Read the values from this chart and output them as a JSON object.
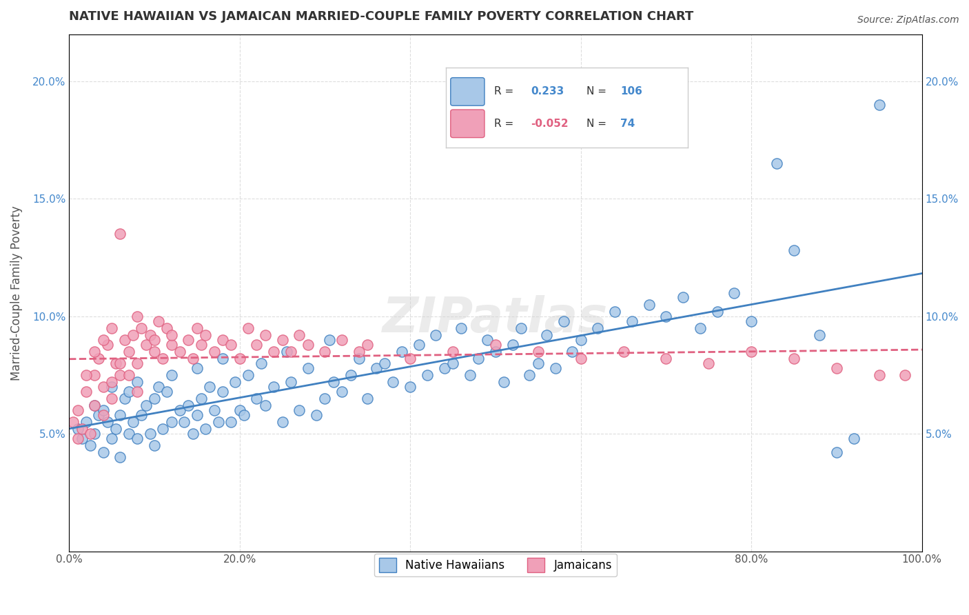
{
  "title": "NATIVE HAWAIIAN VS JAMAICAN MARRIED-COUPLE FAMILY POVERTY CORRELATION CHART",
  "source": "Source: ZipAtlas.com",
  "xlabel": "",
  "ylabel": "Married-Couple Family Poverty",
  "xlim": [
    0,
    100
  ],
  "ylim": [
    0,
    22
  ],
  "xticks": [
    0,
    20,
    40,
    60,
    80,
    100
  ],
  "xticklabels": [
    "0.0%",
    "20.0%",
    "40.0%",
    "60.0%",
    "80.0%",
    "100.0%"
  ],
  "yticks": [
    0,
    5,
    10,
    15,
    20
  ],
  "yticklabels": [
    "",
    "5.0%",
    "10.0%",
    "15.0%",
    "20.0%"
  ],
  "legend_r1": "R =  0.233",
  "legend_n1": "N = 106",
  "legend_r2": "R = -0.052",
  "legend_n2": "N =  74",
  "blue_color": "#a8c8e8",
  "pink_color": "#f0a0b8",
  "blue_line_color": "#4080c0",
  "pink_line_color": "#e06080",
  "watermark": "ZIPatlas",
  "native_hawaiian_data": [
    [
      1,
      5.2
    ],
    [
      1.5,
      4.8
    ],
    [
      2,
      5.5
    ],
    [
      2.5,
      4.5
    ],
    [
      3,
      6.2
    ],
    [
      3,
      5.0
    ],
    [
      3.5,
      5.8
    ],
    [
      4,
      4.2
    ],
    [
      4,
      6.0
    ],
    [
      4.5,
      5.5
    ],
    [
      5,
      4.8
    ],
    [
      5,
      7.0
    ],
    [
      5.5,
      5.2
    ],
    [
      6,
      5.8
    ],
    [
      6,
      4.0
    ],
    [
      6.5,
      6.5
    ],
    [
      7,
      5.0
    ],
    [
      7,
      6.8
    ],
    [
      7.5,
      5.5
    ],
    [
      8,
      4.8
    ],
    [
      8,
      7.2
    ],
    [
      8.5,
      5.8
    ],
    [
      9,
      6.2
    ],
    [
      9.5,
      5.0
    ],
    [
      10,
      4.5
    ],
    [
      10,
      6.5
    ],
    [
      10.5,
      7.0
    ],
    [
      11,
      5.2
    ],
    [
      11.5,
      6.8
    ],
    [
      12,
      5.5
    ],
    [
      12,
      7.5
    ],
    [
      13,
      6.0
    ],
    [
      13.5,
      5.5
    ],
    [
      14,
      6.2
    ],
    [
      14.5,
      5.0
    ],
    [
      15,
      7.8
    ],
    [
      15,
      5.8
    ],
    [
      15.5,
      6.5
    ],
    [
      16,
      5.2
    ],
    [
      16.5,
      7.0
    ],
    [
      17,
      6.0
    ],
    [
      17.5,
      5.5
    ],
    [
      18,
      8.2
    ],
    [
      18,
      6.8
    ],
    [
      19,
      5.5
    ],
    [
      19.5,
      7.2
    ],
    [
      20,
      6.0
    ],
    [
      20.5,
      5.8
    ],
    [
      21,
      7.5
    ],
    [
      22,
      6.5
    ],
    [
      22.5,
      8.0
    ],
    [
      23,
      6.2
    ],
    [
      24,
      7.0
    ],
    [
      25,
      5.5
    ],
    [
      25.5,
      8.5
    ],
    [
      26,
      7.2
    ],
    [
      27,
      6.0
    ],
    [
      28,
      7.8
    ],
    [
      29,
      5.8
    ],
    [
      30,
      6.5
    ],
    [
      30.5,
      9.0
    ],
    [
      31,
      7.2
    ],
    [
      32,
      6.8
    ],
    [
      33,
      7.5
    ],
    [
      34,
      8.2
    ],
    [
      35,
      6.5
    ],
    [
      36,
      7.8
    ],
    [
      37,
      8.0
    ],
    [
      38,
      7.2
    ],
    [
      39,
      8.5
    ],
    [
      40,
      7.0
    ],
    [
      41,
      8.8
    ],
    [
      42,
      7.5
    ],
    [
      43,
      9.2
    ],
    [
      44,
      7.8
    ],
    [
      45,
      8.0
    ],
    [
      46,
      9.5
    ],
    [
      47,
      7.5
    ],
    [
      48,
      8.2
    ],
    [
      49,
      9.0
    ],
    [
      50,
      8.5
    ],
    [
      51,
      7.2
    ],
    [
      52,
      8.8
    ],
    [
      53,
      9.5
    ],
    [
      54,
      7.5
    ],
    [
      55,
      8.0
    ],
    [
      56,
      9.2
    ],
    [
      57,
      7.8
    ],
    [
      58,
      9.8
    ],
    [
      59,
      8.5
    ],
    [
      60,
      9.0
    ],
    [
      62,
      9.5
    ],
    [
      64,
      10.2
    ],
    [
      66,
      9.8
    ],
    [
      68,
      10.5
    ],
    [
      70,
      10.0
    ],
    [
      72,
      10.8
    ],
    [
      74,
      9.5
    ],
    [
      76,
      10.2
    ],
    [
      78,
      11.0
    ],
    [
      80,
      9.8
    ],
    [
      83,
      16.5
    ],
    [
      85,
      12.8
    ],
    [
      88,
      9.2
    ],
    [
      90,
      4.2
    ],
    [
      92,
      4.8
    ],
    [
      95,
      19.0
    ]
  ],
  "jamaican_data": [
    [
      0.5,
      5.5
    ],
    [
      1,
      4.8
    ],
    [
      1.5,
      5.2
    ],
    [
      2,
      6.8
    ],
    [
      2.5,
      5.0
    ],
    [
      3,
      7.5
    ],
    [
      3,
      6.2
    ],
    [
      3.5,
      8.2
    ],
    [
      4,
      7.0
    ],
    [
      4,
      5.8
    ],
    [
      4.5,
      8.8
    ],
    [
      5,
      7.2
    ],
    [
      5,
      9.5
    ],
    [
      5.5,
      8.0
    ],
    [
      6,
      13.5
    ],
    [
      6,
      7.5
    ],
    [
      6.5,
      9.0
    ],
    [
      7,
      8.5
    ],
    [
      7.5,
      9.2
    ],
    [
      8,
      8.0
    ],
    [
      8,
      10.0
    ],
    [
      8.5,
      9.5
    ],
    [
      9,
      8.8
    ],
    [
      9.5,
      9.2
    ],
    [
      10,
      9.0
    ],
    [
      10,
      8.5
    ],
    [
      10.5,
      9.8
    ],
    [
      11,
      8.2
    ],
    [
      11.5,
      9.5
    ],
    [
      12,
      8.8
    ],
    [
      12,
      9.2
    ],
    [
      13,
      8.5
    ],
    [
      14,
      9.0
    ],
    [
      14.5,
      8.2
    ],
    [
      15,
      9.5
    ],
    [
      15.5,
      8.8
    ],
    [
      16,
      9.2
    ],
    [
      17,
      8.5
    ],
    [
      18,
      9.0
    ],
    [
      19,
      8.8
    ],
    [
      20,
      8.2
    ],
    [
      21,
      9.5
    ],
    [
      22,
      8.8
    ],
    [
      23,
      9.2
    ],
    [
      24,
      8.5
    ],
    [
      25,
      9.0
    ],
    [
      26,
      8.5
    ],
    [
      27,
      9.2
    ],
    [
      28,
      8.8
    ],
    [
      30,
      8.5
    ],
    [
      32,
      9.0
    ],
    [
      34,
      8.5
    ],
    [
      35,
      8.8
    ],
    [
      40,
      8.2
    ],
    [
      45,
      8.5
    ],
    [
      50,
      8.8
    ],
    [
      55,
      8.5
    ],
    [
      60,
      8.2
    ],
    [
      65,
      8.5
    ],
    [
      70,
      8.2
    ],
    [
      75,
      8.0
    ],
    [
      80,
      8.5
    ],
    [
      85,
      8.2
    ],
    [
      90,
      7.8
    ],
    [
      95,
      7.5
    ],
    [
      98,
      7.5
    ],
    [
      1,
      6.0
    ],
    [
      2,
      7.5
    ],
    [
      3,
      8.5
    ],
    [
      4,
      9.0
    ],
    [
      5,
      6.5
    ],
    [
      6,
      8.0
    ],
    [
      7,
      7.5
    ],
    [
      8,
      6.8
    ]
  ]
}
